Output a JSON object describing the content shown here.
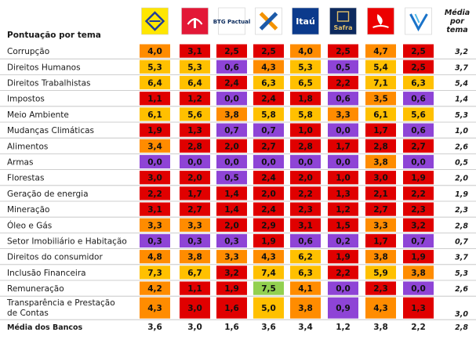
{
  "chart_data": {
    "type": "table",
    "title": "Pontuação por tema",
    "banks": [
      "BB",
      "Bradesco",
      "BTG Pactual",
      "Caixa",
      "Itaú",
      "Safra",
      "Santander",
      "Votorantim"
    ],
    "bank_logos": [
      {
        "name": "banco-do-brasil",
        "text": "",
        "bg": "#ffe600",
        "fg": "#1f3c9a"
      },
      {
        "name": "bradesco",
        "text": "",
        "bg": "#e31837",
        "fg": "#ffffff"
      },
      {
        "name": "btg-pactual",
        "text": "BTG Pactual",
        "bg": "#ffffff",
        "fg": "#0a2a5c"
      },
      {
        "name": "caixa",
        "text": "",
        "bg": "#ffffff",
        "fg": "#1c5aa8"
      },
      {
        "name": "itau",
        "text": "Itaú",
        "bg": "#0b3a8c",
        "fg": "#ffffff"
      },
      {
        "name": "safra",
        "text": "Safra",
        "bg": "#0d2a5e",
        "fg": "#e3c068"
      },
      {
        "name": "santander",
        "text": "",
        "bg": "#ec0000",
        "fg": "#ffffff"
      },
      {
        "name": "votorantim",
        "text": "",
        "bg": "#ffffff",
        "fg": "#1a73c9"
      }
    ],
    "avg_col_label": "Média por tema",
    "avg_col_lines": [
      "Média",
      "por",
      "tema"
    ],
    "footer_label": "Média dos Bancos",
    "colors": {
      "red": "#e00000",
      "orange": "#ff8c00",
      "yellow": "#ffc000",
      "purple": "#8e44d6",
      "green": "#92d050",
      "row_border": "#bfbfbf",
      "text": "#1a1a1a"
    },
    "rows": [
      {
        "label": "Corrupção",
        "values": [
          4.0,
          3.1,
          2.5,
          2.5,
          4.0,
          2.5,
          4.7,
          2.5
        ],
        "avg": 3.2
      },
      {
        "label": "Direitos Humanos",
        "values": [
          5.3,
          5.3,
          0.6,
          4.3,
          5.3,
          0.5,
          5.4,
          2.5
        ],
        "avg": 3.7
      },
      {
        "label": "Direitos Trabalhistas",
        "values": [
          6.4,
          6.4,
          2.4,
          6.3,
          6.5,
          2.2,
          7.1,
          6.3
        ],
        "avg": 5.4
      },
      {
        "label": "Impostos",
        "values": [
          1.1,
          1.2,
          0.0,
          2.4,
          1.8,
          0.6,
          3.5,
          0.6
        ],
        "avg": 1.4
      },
      {
        "label": "Meio Ambiente",
        "values": [
          6.1,
          5.6,
          3.8,
          5.8,
          5.8,
          3.3,
          6.1,
          5.6
        ],
        "avg": 5.3
      },
      {
        "label": "Mudanças Climáticas",
        "values": [
          1.9,
          1.3,
          0.7,
          0.7,
          1.0,
          0.0,
          1.7,
          0.6
        ],
        "avg": 1.0
      },
      {
        "label": "Alimentos",
        "values": [
          3.4,
          2.8,
          2.0,
          2.7,
          2.8,
          1.7,
          2.8,
          2.7
        ],
        "avg": 2.6
      },
      {
        "label": "Armas",
        "values": [
          0.0,
          0.0,
          0.0,
          0.0,
          0.0,
          0.0,
          3.8,
          0.0
        ],
        "avg": 0.5
      },
      {
        "label": "Florestas",
        "values": [
          3.0,
          2.0,
          0.5,
          2.4,
          2.0,
          1.0,
          3.0,
          1.9
        ],
        "avg": 2.0
      },
      {
        "label": "Geração de energia",
        "values": [
          2.2,
          1.7,
          1.4,
          2.0,
          2.2,
          1.3,
          2.1,
          2.2
        ],
        "avg": 1.9
      },
      {
        "label": "Mineração",
        "values": [
          3.1,
          2.7,
          1.4,
          2.4,
          2.3,
          1.2,
          2.7,
          2.3
        ],
        "avg": 2.3
      },
      {
        "label": "Óleo e Gás",
        "values": [
          3.3,
          3.3,
          2.0,
          2.9,
          3.1,
          1.5,
          3.3,
          3.2
        ],
        "avg": 2.8
      },
      {
        "label": "Setor Imobiliário e Habitação",
        "values": [
          0.3,
          0.3,
          0.3,
          1.9,
          0.6,
          0.2,
          1.7,
          0.7
        ],
        "avg": 0.7
      },
      {
        "label": "Direitos do consumidor",
        "values": [
          4.8,
          3.8,
          3.3,
          4.3,
          6.2,
          1.9,
          3.8,
          1.9
        ],
        "avg": 3.7
      },
      {
        "label": "Inclusão Financeira",
        "values": [
          7.3,
          6.7,
          3.2,
          7.4,
          6.3,
          2.2,
          5.9,
          3.8
        ],
        "avg": 5.3
      },
      {
        "label": "Remuneração",
        "values": [
          4.2,
          1.1,
          1.9,
          7.5,
          4.1,
          0.0,
          2.3,
          0.0
        ],
        "avg": 2.6
      },
      {
        "label": "Transparência e Prestação de Contas",
        "label_lines": [
          "Transparência e Prestação",
          "de Contas"
        ],
        "values": [
          4.3,
          3.0,
          1.6,
          5.0,
          3.8,
          0.9,
          4.3,
          1.3
        ],
        "avg": 3.0
      }
    ],
    "bank_averages": [
      3.6,
      3.0,
      1.6,
      3.6,
      3.4,
      1.2,
      3.8,
      2.2
    ],
    "overall_avg": 2.8
  }
}
